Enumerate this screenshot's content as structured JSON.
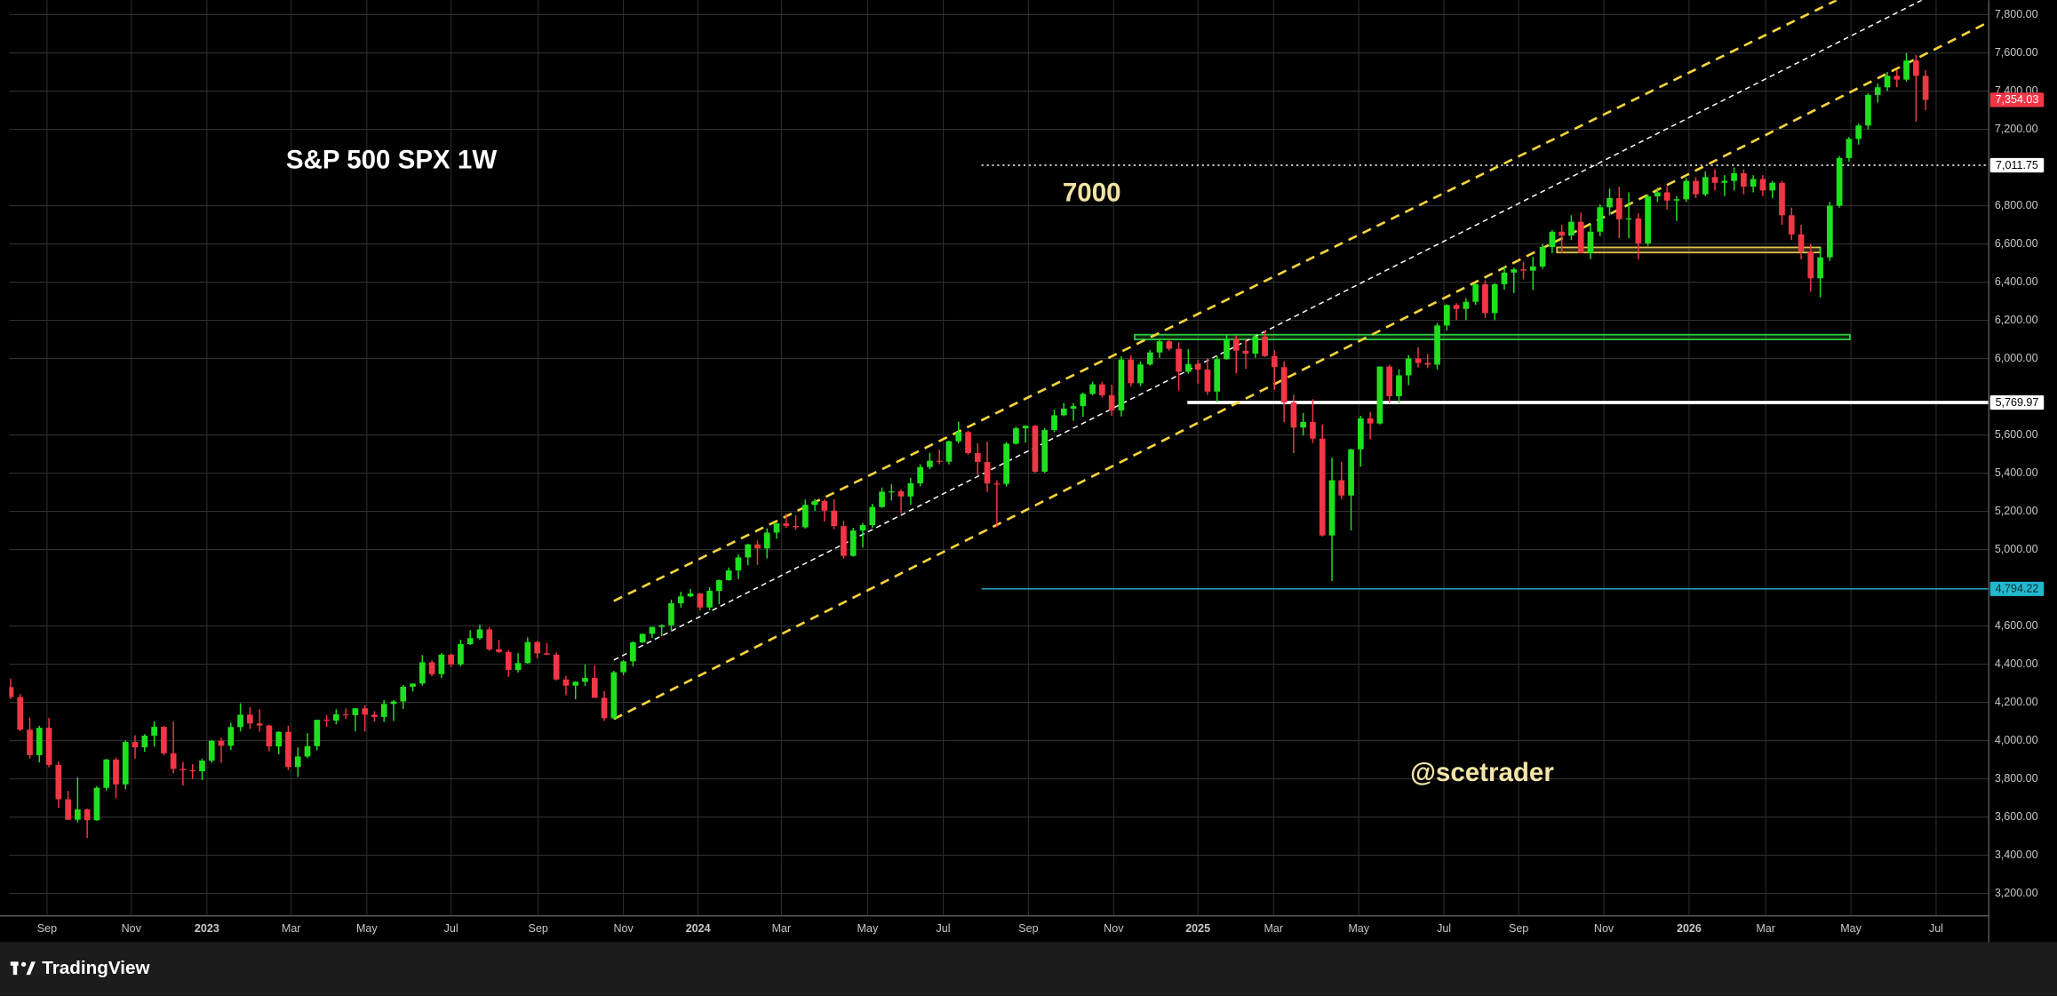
{
  "chart_data": {
    "type": "candlestick",
    "title": "S&P 500 SPX 1W",
    "annotations": [
      {
        "text": "7000",
        "color": "#f3e3a2"
      },
      {
        "text": "@scetrader",
        "color": "#f5e6a8"
      }
    ],
    "brand": "TradingView",
    "up_color": "#1fe01f",
    "down_color": "#f23645",
    "grid": true,
    "xlim": [
      -0.15,
      206.6
    ],
    "xticks": [
      {
        "value": 3.8,
        "label": "Sep"
      },
      {
        "value": 12.6,
        "label": "Nov"
      },
      {
        "value": 20.5,
        "label": "2023"
      },
      {
        "value": 29.3,
        "label": "Mar"
      },
      {
        "value": 37.2,
        "label": "May"
      },
      {
        "value": 46.0,
        "label": "Jul"
      },
      {
        "value": 55.1,
        "label": "Sep"
      },
      {
        "value": 64.0,
        "label": "Nov"
      },
      {
        "value": 71.8,
        "label": "2024"
      },
      {
        "value": 80.5,
        "label": "Mar"
      },
      {
        "value": 89.5,
        "label": "May"
      },
      {
        "value": 97.4,
        "label": "Jul"
      },
      {
        "value": 106.3,
        "label": "Sep"
      },
      {
        "value": 115.2,
        "label": "Nov"
      },
      {
        "value": 124.0,
        "label": "2025"
      },
      {
        "value": 131.9,
        "label": "Mar"
      },
      {
        "value": 140.8,
        "label": "May"
      },
      {
        "value": 149.7,
        "label": "Jul"
      },
      {
        "value": 157.5,
        "label": "Sep"
      },
      {
        "value": 166.4,
        "label": "Nov"
      },
      {
        "value": 175.3,
        "label": "2026"
      },
      {
        "value": 183.3,
        "label": "Mar"
      },
      {
        "value": 192.2,
        "label": "May"
      },
      {
        "value": 201.1,
        "label": "Jul"
      }
    ],
    "ylim": [
      3083,
      7876
    ],
    "yticks": [
      {
        "value": 3200,
        "label": "3,200.00"
      },
      {
        "value": 3400,
        "label": "3,400.00"
      },
      {
        "value": 3600,
        "label": "3,600.00"
      },
      {
        "value": 3800,
        "label": "3,800.00"
      },
      {
        "value": 4000,
        "label": "4,000.00"
      },
      {
        "value": 4200,
        "label": "4,200.00"
      },
      {
        "value": 4400,
        "label": "4,400.00"
      },
      {
        "value": 4600,
        "label": "4,600.00"
      },
      {
        "value": 5000,
        "label": "5,000.00"
      },
      {
        "value": 5200,
        "label": "5,200.00"
      },
      {
        "value": 5400,
        "label": "5,400.00"
      },
      {
        "value": 5600,
        "label": "5,600.00"
      },
      {
        "value": 6000,
        "label": "6,000.00"
      },
      {
        "value": 6200,
        "label": "6,200.00"
      },
      {
        "value": 6400,
        "label": "6,400.00"
      },
      {
        "value": 6600,
        "label": "6,600.00"
      },
      {
        "value": 6800,
        "label": "6,800.00"
      },
      {
        "value": 7200,
        "label": "7,200.00"
      },
      {
        "value": 7400,
        "label": "7,400.00"
      },
      {
        "value": 7600,
        "label": "7,600.00"
      },
      {
        "value": 7800,
        "label": "7,800.00"
      }
    ],
    "levels": [
      {
        "value": 7011.75,
        "label": "7,011.75",
        "start": 101.4,
        "color": "#ffffff",
        "label_color": "#000000",
        "style": "dotted"
      },
      {
        "value": 5769.97,
        "label": "5,769.97",
        "start": 122.9,
        "color": "#ffffff",
        "label_color": "#000000",
        "style": "bold"
      },
      {
        "value": 4794.22,
        "label": "4,794.22",
        "start": 101.4,
        "color": "#22b8cf",
        "label_color": "#0a2a30",
        "style": "solid"
      }
    ],
    "last_price": {
      "value": 7354.03,
      "label": "7,354.03",
      "color": "#f23645",
      "label_color": "#ffffff"
    },
    "zones": [
      {
        "low": 6100,
        "high": 6125,
        "start": 117.4,
        "end": 192.1,
        "color": "#2ecc40"
      },
      {
        "low": 6555,
        "high": 6582,
        "start": 161.5,
        "end": 189.0,
        "color": "#e0c050"
      }
    ],
    "trend_lines": [
      {
        "from": [
          63.0,
          4731
        ],
        "to": [
          190.7,
          7876
        ],
        "color": "#f5d43b"
      },
      {
        "from": [
          63.0,
          4422
        ],
        "to": [
          199.6,
          7876
        ],
        "color": "#ffffff"
      },
      {
        "from": [
          63.0,
          4113
        ],
        "to": [
          206.2,
          7752
        ],
        "color": "#f5d43b"
      }
    ],
    "candles": [
      [
        4280,
        4325,
        4218,
        4228
      ],
      [
        4228,
        4244,
        4050,
        4057
      ],
      [
        4057,
        4120,
        3907,
        3924
      ],
      [
        3924,
        4077,
        3886,
        4067
      ],
      [
        4067,
        4119,
        3860,
        3873
      ],
      [
        3873,
        3891,
        3648,
        3693
      ],
      [
        3693,
        3737,
        3584,
        3586
      ],
      [
        3586,
        3807,
        3572,
        3640
      ],
      [
        3640,
        3644,
        3491,
        3583
      ],
      [
        3583,
        3762,
        3580,
        3753
      ],
      [
        3753,
        3905,
        3739,
        3901
      ],
      [
        3901,
        3911,
        3698,
        3771
      ],
      [
        3771,
        4001,
        3745,
        3993
      ],
      [
        3993,
        4028,
        3906,
        3965
      ],
      [
        3965,
        4034,
        3941,
        4026
      ],
      [
        4026,
        4101,
        3969,
        4072
      ],
      [
        4072,
        4076,
        3923,
        3934
      ],
      [
        3934,
        4101,
        3828,
        3852
      ],
      [
        3852,
        3888,
        3765,
        3845
      ],
      [
        3845,
        3877,
        3800,
        3840
      ],
      [
        3840,
        3906,
        3794,
        3895
      ],
      [
        3895,
        4003,
        3885,
        3999
      ],
      [
        3999,
        4015,
        3885,
        3973
      ],
      [
        3973,
        4094,
        3950,
        4071
      ],
      [
        4071,
        4195,
        4048,
        4136
      ],
      [
        4136,
        4176,
        4061,
        4090
      ],
      [
        4090,
        4164,
        4047,
        4079
      ],
      [
        4079,
        4084,
        3944,
        3970
      ],
      [
        3970,
        4049,
        3928,
        4046
      ],
      [
        4046,
        4078,
        3846,
        3862
      ],
      [
        3862,
        3964,
        3809,
        3917
      ],
      [
        3917,
        4039,
        3909,
        3971
      ],
      [
        3971,
        4110,
        3949,
        4109
      ],
      [
        4109,
        4133,
        4073,
        4105
      ],
      [
        4105,
        4164,
        4086,
        4138
      ],
      [
        4138,
        4169,
        4114,
        4133
      ],
      [
        4133,
        4170,
        4049,
        4169
      ],
      [
        4169,
        4186,
        4048,
        4136
      ],
      [
        4136,
        4154,
        4099,
        4124
      ],
      [
        4124,
        4213,
        4098,
        4192
      ],
      [
        4192,
        4212,
        4103,
        4205
      ],
      [
        4205,
        4291,
        4166,
        4282
      ],
      [
        4282,
        4299,
        4257,
        4299
      ],
      [
        4299,
        4448,
        4288,
        4410
      ],
      [
        4410,
        4420,
        4337,
        4348
      ],
      [
        4348,
        4458,
        4328,
        4450
      ],
      [
        4450,
        4456,
        4385,
        4399
      ],
      [
        4399,
        4528,
        4389,
        4505
      ],
      [
        4505,
        4578,
        4500,
        4536
      ],
      [
        4536,
        4607,
        4528,
        4582
      ],
      [
        4582,
        4594,
        4470,
        4478
      ],
      [
        4478,
        4528,
        4459,
        4464
      ],
      [
        4464,
        4474,
        4335,
        4370
      ],
      [
        4370,
        4458,
        4357,
        4406
      ],
      [
        4406,
        4541,
        4403,
        4516
      ],
      [
        4516,
        4522,
        4431,
        4457
      ],
      [
        4457,
        4511,
        4448,
        4450
      ],
      [
        4450,
        4462,
        4315,
        4320
      ],
      [
        4320,
        4338,
        4238,
        4288
      ],
      [
        4288,
        4311,
        4216,
        4308
      ],
      [
        4308,
        4398,
        4285,
        4328
      ],
      [
        4328,
        4394,
        4223,
        4224
      ],
      [
        4224,
        4260,
        4103,
        4117
      ],
      [
        4117,
        4366,
        4113,
        4358
      ],
      [
        4358,
        4421,
        4343,
        4415
      ],
      [
        4415,
        4520,
        4389,
        4514
      ],
      [
        4514,
        4560,
        4511,
        4559
      ],
      [
        4559,
        4596,
        4537,
        4595
      ],
      [
        4595,
        4609,
        4546,
        4604
      ],
      [
        4604,
        4738,
        4574,
        4719
      ],
      [
        4719,
        4779,
        4697,
        4755
      ],
      [
        4755,
        4794,
        4751,
        4770
      ],
      [
        4770,
        4773,
        4682,
        4697
      ],
      [
        4697,
        4803,
        4682,
        4784
      ],
      [
        4784,
        4843,
        4714,
        4840
      ],
      [
        4840,
        4906,
        4837,
        4891
      ],
      [
        4891,
        4976,
        4845,
        4959
      ],
      [
        4959,
        5031,
        4918,
        5027
      ],
      [
        5027,
        5048,
        4920,
        5006
      ],
      [
        5006,
        5111,
        4954,
        5089
      ],
      [
        5089,
        5141,
        5057,
        5137
      ],
      [
        5137,
        5189,
        5114,
        5124
      ],
      [
        5124,
        5179,
        5104,
        5117
      ],
      [
        5117,
        5262,
        5110,
        5234
      ],
      [
        5234,
        5265,
        5203,
        5254
      ],
      [
        5254,
        5264,
        5146,
        5204
      ],
      [
        5204,
        5263,
        5107,
        5123
      ],
      [
        5123,
        5150,
        4953,
        4967
      ],
      [
        4967,
        5114,
        4963,
        5100
      ],
      [
        5100,
        5139,
        5011,
        5128
      ],
      [
        5128,
        5240,
        5114,
        5223
      ],
      [
        5223,
        5325,
        5218,
        5303
      ],
      [
        5303,
        5342,
        5257,
        5305
      ],
      [
        5305,
        5315,
        5191,
        5278
      ],
      [
        5278,
        5376,
        5234,
        5347
      ],
      [
        5347,
        5447,
        5331,
        5432
      ],
      [
        5432,
        5506,
        5420,
        5465
      ],
      [
        5465,
        5524,
        5447,
        5460
      ],
      [
        5460,
        5570,
        5446,
        5567
      ],
      [
        5567,
        5670,
        5556,
        5615
      ],
      [
        5615,
        5622,
        5497,
        5505
      ],
      [
        5505,
        5556,
        5390,
        5459
      ],
      [
        5459,
        5566,
        5302,
        5346
      ],
      [
        5346,
        5362,
        5120,
        5344
      ],
      [
        5344,
        5563,
        5330,
        5554
      ],
      [
        5554,
        5644,
        5550,
        5635
      ],
      [
        5635,
        5651,
        5560,
        5648
      ],
      [
        5648,
        5652,
        5403,
        5408
      ],
      [
        5408,
        5636,
        5402,
        5626
      ],
      [
        5626,
        5733,
        5614,
        5703
      ],
      [
        5703,
        5767,
        5698,
        5738
      ],
      [
        5738,
        5767,
        5674,
        5751
      ],
      [
        5751,
        5822,
        5696,
        5815
      ],
      [
        5815,
        5879,
        5808,
        5865
      ],
      [
        5865,
        5878,
        5796,
        5808
      ],
      [
        5808,
        5863,
        5700,
        5729
      ],
      [
        5729,
        6012,
        5697,
        5995
      ],
      [
        5995,
        6018,
        5853,
        5871
      ],
      [
        5871,
        5985,
        5856,
        5969
      ],
      [
        5969,
        6045,
        5963,
        6032
      ],
      [
        6032,
        6100,
        6003,
        6090
      ],
      [
        6090,
        6099,
        6041,
        6051
      ],
      [
        6051,
        6085,
        5832,
        5931
      ],
      [
        5931,
        6050,
        5920,
        5971
      ],
      [
        5971,
        5994,
        5869,
        5942
      ],
      [
        5942,
        6000,
        5810,
        5827
      ],
      [
        5827,
        6016,
        5773,
        5997
      ],
      [
        5997,
        6128,
        5993,
        6101
      ],
      [
        6101,
        6120,
        5923,
        6041
      ],
      [
        6041,
        6101,
        5946,
        6026
      ],
      [
        6026,
        6127,
        6004,
        6115
      ],
      [
        6115,
        6147,
        6008,
        6013
      ],
      [
        6013,
        6043,
        5837,
        5955
      ],
      [
        5955,
        5986,
        5667,
        5770
      ],
      [
        5770,
        5810,
        5505,
        5639
      ],
      [
        5639,
        5715,
        5597,
        5668
      ],
      [
        5668,
        5787,
        5558,
        5581
      ],
      [
        5581,
        5655,
        5069,
        5074
      ],
      [
        5074,
        5481,
        4835,
        5363
      ],
      [
        5363,
        5459,
        5264,
        5283
      ],
      [
        5283,
        5528,
        5101,
        5525
      ],
      [
        5525,
        5700,
        5434,
        5687
      ],
      [
        5687,
        5721,
        5578,
        5660
      ],
      [
        5660,
        5959,
        5655,
        5958
      ],
      [
        5958,
        5968,
        5768,
        5803
      ],
      [
        5803,
        5944,
        5767,
        5912
      ],
      [
        5912,
        6017,
        5861,
        6000
      ],
      [
        6000,
        6059,
        5953,
        5977
      ],
      [
        5977,
        6024,
        5950,
        5968
      ],
      [
        5968,
        6187,
        5943,
        6173
      ],
      [
        6173,
        6284,
        6147,
        6280
      ],
      [
        6280,
        6290,
        6201,
        6260
      ],
      [
        6260,
        6316,
        6201,
        6297
      ],
      [
        6297,
        6395,
        6281,
        6389
      ],
      [
        6389,
        6409,
        6212,
        6238
      ],
      [
        6238,
        6395,
        6201,
        6389
      ],
      [
        6389,
        6481,
        6361,
        6450
      ],
      [
        6450,
        6475,
        6343,
        6467
      ],
      [
        6467,
        6508,
        6414,
        6460
      ],
      [
        6460,
        6532,
        6360,
        6482
      ],
      [
        6482,
        6600,
        6469,
        6584
      ],
      [
        6584,
        6672,
        6552,
        6664
      ],
      [
        6664,
        6700,
        6550,
        6644
      ],
      [
        6644,
        6750,
        6620,
        6716
      ],
      [
        6716,
        6764,
        6550,
        6553
      ],
      [
        6553,
        6700,
        6520,
        6664
      ],
      [
        6664,
        6807,
        6640,
        6792
      ],
      [
        6792,
        6890,
        6750,
        6840
      ],
      [
        6840,
        6900,
        6630,
        6729
      ],
      [
        6729,
        6870,
        6630,
        6734
      ],
      [
        6734,
        6760,
        6520,
        6603
      ],
      [
        6603,
        6860,
        6590,
        6849
      ],
      [
        6849,
        6895,
        6820,
        6870
      ],
      [
        6870,
        6900,
        6780,
        6827
      ],
      [
        6827,
        6850,
        6720,
        6834
      ],
      [
        6834,
        6945,
        6820,
        6930
      ],
      [
        6930,
        6950,
        6840,
        6860
      ],
      [
        6860,
        6980,
        6850,
        6950
      ],
      [
        6950,
        6990,
        6880,
        6920
      ],
      [
        6920,
        6960,
        6850,
        6930
      ],
      [
        6930,
        7000,
        6880,
        6970
      ],
      [
        6970,
        6990,
        6860,
        6900
      ],
      [
        6900,
        6960,
        6870,
        6940
      ],
      [
        6940,
        6960,
        6850,
        6880
      ],
      [
        6880,
        6930,
        6840,
        6920
      ],
      [
        6920,
        6930,
        6700,
        6750
      ],
      [
        6750,
        6790,
        6620,
        6650
      ],
      [
        6650,
        6700,
        6520,
        6560
      ],
      [
        6560,
        6600,
        6350,
        6420
      ],
      [
        6420,
        6580,
        6320,
        6530
      ],
      [
        6530,
        6820,
        6510,
        6800
      ],
      [
        6800,
        7060,
        6790,
        7050
      ],
      [
        7050,
        7160,
        7030,
        7150
      ],
      [
        7150,
        7230,
        7120,
        7220
      ],
      [
        7220,
        7390,
        7200,
        7380
      ],
      [
        7380,
        7440,
        7340,
        7420
      ],
      [
        7420,
        7500,
        7400,
        7480
      ],
      [
        7480,
        7510,
        7420,
        7460
      ],
      [
        7460,
        7600,
        7450,
        7560
      ],
      [
        7560,
        7590,
        7240,
        7480
      ],
      [
        7480,
        7510,
        7300,
        7354.03
      ]
    ]
  }
}
